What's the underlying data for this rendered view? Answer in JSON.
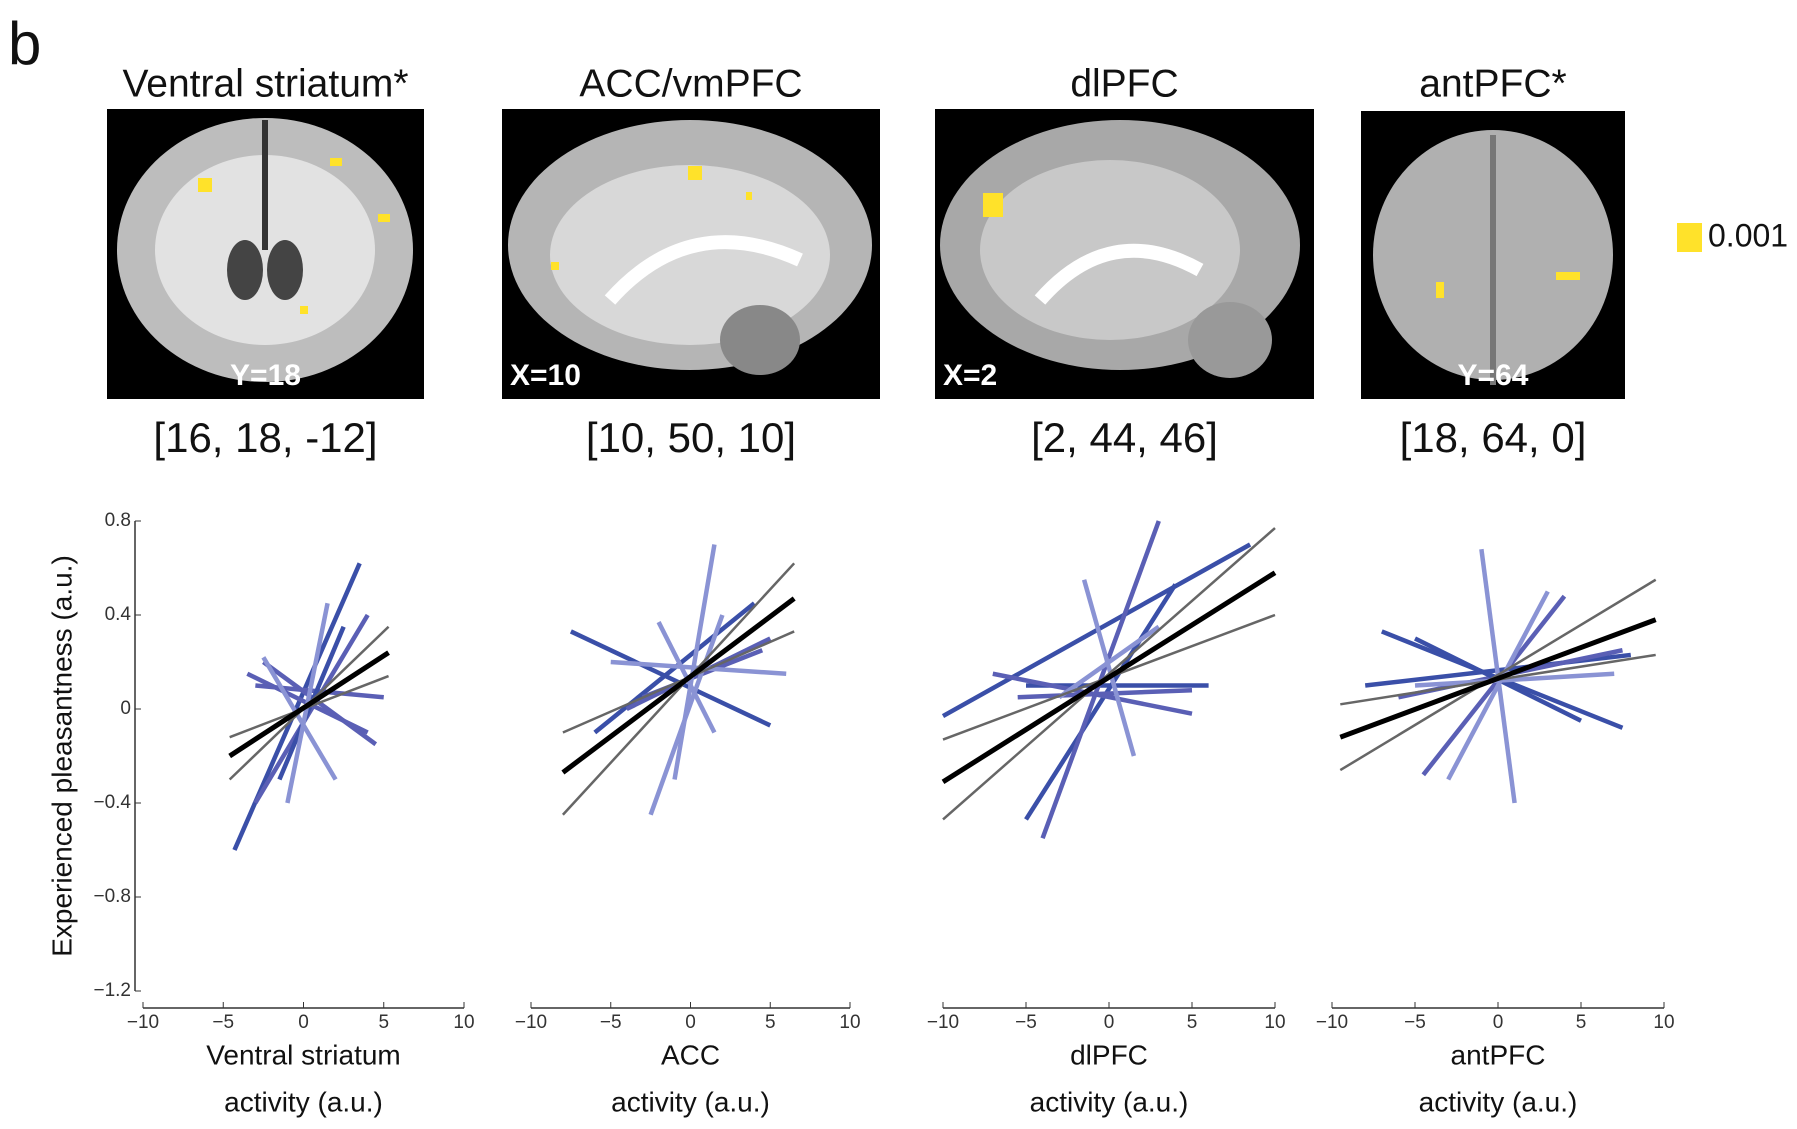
{
  "panel_label": "b",
  "brain_maps": [
    {
      "title": "Ventral striatum*",
      "slice": "Y=18",
      "coordinates": "[16, 18, -12]"
    },
    {
      "title": "ACC/vmPFC",
      "slice": "X=10",
      "coordinates": "[10, 50, 10]"
    },
    {
      "title": "dlPFC",
      "slice": "X=2",
      "coordinates": "[2, 44, 46]"
    },
    {
      "title": "antPFC*",
      "slice": "Y=64",
      "coordinates": "[18, 64, 0]"
    }
  ],
  "colorbar_label": "0.001",
  "chart_data": [
    {
      "type": "line",
      "ylabel": "Experienced pleasantness (a.u.)",
      "xlabel": [
        "Ventral striatum",
        "activity (a.u.)"
      ],
      "xlim": [
        -10,
        10
      ],
      "xticks": [
        {
          "value": -10,
          "label": "−10"
        },
        {
          "value": -5,
          "label": "−5"
        },
        0,
        5,
        10
      ],
      "ylim": [
        -1.2,
        0.8
      ],
      "yticks": [
        0.8,
        0.4,
        0,
        {
          "value": -0.4,
          "label": "−0.4"
        },
        {
          "value": -0.8,
          "label": "−0.8"
        },
        {
          "value": -1.2,
          "label": "−1.2"
        }
      ],
      "series": [
        {
          "color": "#3a4fa8",
          "x": [
            -4.3,
            3.5
          ],
          "values": [
            -0.6,
            0.62
          ]
        },
        {
          "color": "#5a5fb5",
          "x": [
            -3,
            4
          ],
          "values": [
            -0.4,
            0.4
          ]
        },
        {
          "color": "#5a5fb5",
          "x": [
            -2.5,
            4.5
          ],
          "values": [
            0.2,
            -0.15
          ]
        },
        {
          "color": "#5a5fb5",
          "x": [
            -3,
            5
          ],
          "values": [
            0.1,
            0.05
          ]
        },
        {
          "color": "#3a4fa8",
          "x": [
            -1.5,
            2.5
          ],
          "values": [
            -0.3,
            0.35
          ]
        },
        {
          "color": "#5a5fb5",
          "x": [
            -3.5,
            4
          ],
          "values": [
            0.15,
            -0.1
          ]
        },
        {
          "color": "#8a93d4",
          "x": [
            -2.5,
            2
          ],
          "values": [
            0.22,
            -0.3
          ]
        },
        {
          "color": "#8a93d4",
          "x": [
            -1,
            1.5
          ],
          "values": [
            -0.4,
            0.45
          ]
        },
        {
          "color": "#666666",
          "x": [
            -4.6,
            5.3
          ],
          "values": [
            -0.3,
            0.35
          ]
        },
        {
          "color": "#666666",
          "x": [
            -4.6,
            5.3
          ],
          "values": [
            -0.12,
            0.14
          ]
        },
        {
          "color": "#000000",
          "x": [
            -4.6,
            5.3
          ],
          "values": [
            -0.2,
            0.24
          ]
        }
      ]
    },
    {
      "type": "line",
      "xlabel": [
        "ACC",
        "activity (a.u.)"
      ],
      "xlim": [
        -10,
        10
      ],
      "xticks": [
        {
          "value": -10,
          "label": "−10"
        },
        {
          "value": -5,
          "label": "−5"
        },
        0,
        5,
        10
      ],
      "ylim": [
        -1.2,
        0.8
      ],
      "series": [
        {
          "color": "#3a4fa8",
          "x": [
            -7.5,
            5
          ],
          "values": [
            0.33,
            -0.07
          ]
        },
        {
          "color": "#3a4fa8",
          "x": [
            -6,
            4
          ],
          "values": [
            -0.1,
            0.45
          ]
        },
        {
          "color": "#5a5fb5",
          "x": [
            -4,
            5
          ],
          "values": [
            0,
            0.3
          ]
        },
        {
          "color": "#5a5fb5",
          "x": [
            -3,
            4.5
          ],
          "values": [
            0.05,
            0.25
          ]
        },
        {
          "color": "#8a93d4",
          "x": [
            -2,
            1.5
          ],
          "values": [
            0.37,
            -0.1
          ]
        },
        {
          "color": "#8a93d4",
          "x": [
            1.5,
            -1
          ],
          "values": [
            0.7,
            -0.3
          ]
        },
        {
          "color": "#8a93d4",
          "x": [
            -2.5,
            2
          ],
          "values": [
            -0.45,
            0.4
          ]
        },
        {
          "color": "#8a93d4",
          "x": [
            -5,
            6
          ],
          "values": [
            0.2,
            0.15
          ]
        },
        {
          "color": "#666666",
          "x": [
            -8,
            6.5
          ],
          "values": [
            -0.45,
            0.62
          ]
        },
        {
          "color": "#666666",
          "x": [
            -8,
            6.5
          ],
          "values": [
            -0.1,
            0.33
          ]
        },
        {
          "color": "#000000",
          "x": [
            -8,
            6.5
          ],
          "values": [
            -0.27,
            0.47
          ]
        }
      ]
    },
    {
      "type": "line",
      "xlabel": [
        "dlPFC",
        "activity (a.u.)"
      ],
      "xlim": [
        -10,
        10
      ],
      "xticks": [
        {
          "value": -10,
          "label": "−10"
        },
        {
          "value": -5,
          "label": "−5"
        },
        0,
        5,
        10
      ],
      "ylim": [
        -1.2,
        0.8
      ],
      "series": [
        {
          "color": "#3a4fa8",
          "x": [
            -10,
            8.5
          ],
          "values": [
            -0.03,
            0.7
          ]
        },
        {
          "color": "#3a4fa8",
          "x": [
            -5,
            4
          ],
          "values": [
            -0.47,
            0.53
          ]
        },
        {
          "color": "#3a4fa8",
          "x": [
            -5,
            6
          ],
          "values": [
            0.1,
            0.1
          ]
        },
        {
          "color": "#5a5fb5",
          "x": [
            -5.5,
            5
          ],
          "values": [
            0.05,
            0.08
          ]
        },
        {
          "color": "#5a5fb5",
          "x": [
            -4,
            3
          ],
          "values": [
            -0.55,
            0.8
          ]
        },
        {
          "color": "#5a5fb5",
          "x": [
            -7,
            5
          ],
          "values": [
            0.15,
            -0.02
          ]
        },
        {
          "color": "#8a93d4",
          "x": [
            -1.5,
            1.5
          ],
          "values": [
            0.55,
            -0.2
          ]
        },
        {
          "color": "#8a93d4",
          "x": [
            -3,
            3
          ],
          "values": [
            0.05,
            0.35
          ]
        },
        {
          "color": "#666666",
          "x": [
            -10,
            10
          ],
          "values": [
            -0.47,
            0.77
          ]
        },
        {
          "color": "#666666",
          "x": [
            -10,
            10
          ],
          "values": [
            -0.13,
            0.4
          ]
        },
        {
          "color": "#000000",
          "x": [
            -10,
            10
          ],
          "values": [
            -0.31,
            0.58
          ]
        }
      ]
    },
    {
      "type": "line",
      "xlabel": [
        "antPFC",
        "activity (a.u.)"
      ],
      "xlim": [
        -10,
        10
      ],
      "xticks": [
        {
          "value": -10,
          "label": "−10"
        },
        {
          "value": -5,
          "label": "−5"
        },
        0,
        5,
        10
      ],
      "ylim": [
        -1.2,
        0.8
      ],
      "series": [
        {
          "color": "#3a4fa8",
          "x": [
            -7,
            7.5
          ],
          "values": [
            0.33,
            -0.08
          ]
        },
        {
          "color": "#3a4fa8",
          "x": [
            -8,
            8
          ],
          "values": [
            0.1,
            0.23
          ]
        },
        {
          "color": "#5a5fb5",
          "x": [
            -4.5,
            4
          ],
          "values": [
            -0.28,
            0.48
          ]
        },
        {
          "color": "#5a5fb5",
          "x": [
            -6,
            7.5
          ],
          "values": [
            0.05,
            0.25
          ]
        },
        {
          "color": "#3a4fa8",
          "x": [
            -5,
            5
          ],
          "values": [
            0.3,
            -0.05
          ]
        },
        {
          "color": "#8a93d4",
          "x": [
            -1,
            1
          ],
          "values": [
            0.68,
            -0.4
          ]
        },
        {
          "color": "#8a93d4",
          "x": [
            -3,
            3
          ],
          "values": [
            -0.3,
            0.5
          ]
        },
        {
          "color": "#8a93d4",
          "x": [
            -5,
            7
          ],
          "values": [
            0.1,
            0.15
          ]
        },
        {
          "color": "#666666",
          "x": [
            -9.5,
            9.5
          ],
          "values": [
            -0.26,
            0.55
          ]
        },
        {
          "color": "#666666",
          "x": [
            -9.5,
            9.5
          ],
          "values": [
            0.02,
            0.23
          ]
        },
        {
          "color": "#000000",
          "x": [
            -9.5,
            9.5
          ],
          "values": [
            -0.12,
            0.38
          ]
        }
      ]
    }
  ]
}
